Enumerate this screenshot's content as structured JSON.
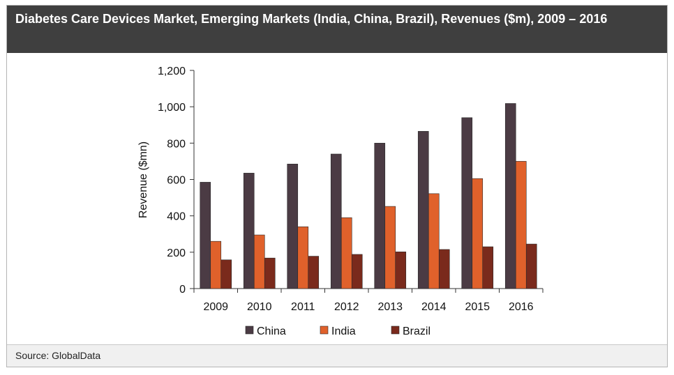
{
  "header": {
    "title": "Diabetes Care Devices Market, Emerging Markets  (India, China, Brazil), Revenues ($m), 2009 – 2016"
  },
  "footer": {
    "source": "Source: GlobalData"
  },
  "colors": {
    "China": "#4b3b44",
    "India": "#e0612b",
    "Brazil": "#7a2a1c"
  },
  "chart_data": {
    "type": "bar",
    "title": "Diabetes Care Devices Market, Emerging Markets  (India, China, Brazil), Revenues ($m), 2009 – 2016",
    "xlabel": "",
    "ylabel": "Revenue ($mn)",
    "ylim": [
      0,
      1200
    ],
    "yticks": [
      "0",
      "200",
      "400",
      "600",
      "800",
      "1,000",
      "1,200"
    ],
    "categories": [
      "2009",
      "2010",
      "2011",
      "2012",
      "2013",
      "2014",
      "2015",
      "2016"
    ],
    "series": [
      {
        "name": "China",
        "values": [
          585,
          635,
          685,
          740,
          800,
          865,
          940,
          1018
        ]
      },
      {
        "name": "India",
        "values": [
          260,
          295,
          340,
          390,
          452,
          522,
          605,
          700
        ]
      },
      {
        "name": "Brazil",
        "values": [
          158,
          168,
          178,
          188,
          202,
          215,
          230,
          245
        ]
      }
    ],
    "grid": false,
    "legend_position": "bottom"
  }
}
